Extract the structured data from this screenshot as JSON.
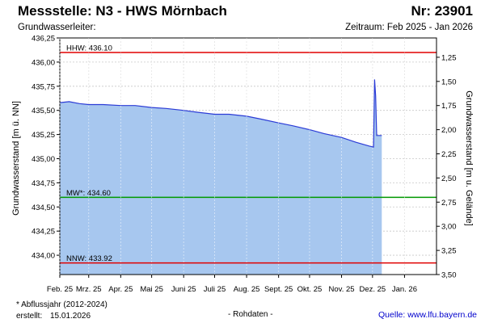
{
  "header": {
    "title": "Messstelle: N3 - HWS Mörnbach",
    "number": "Nr: 23901",
    "aquifer_label": "Grundwasserleiter:",
    "period": "Zeitraum: Feb 2025 - Jan 2026"
  },
  "footer": {
    "footnote": "* Abflussjahr (2012-2024)",
    "created_label": "erstellt:",
    "created_date": "15.01.2026",
    "raw_data": "- Rohdaten -",
    "source": "Quelle: www.lfu.bayern.de"
  },
  "colors": {
    "fill": "#a7c7ef",
    "line": "#2b3bd6",
    "hhw": "#e00000",
    "mw": "#009900",
    "nnw": "#e00000",
    "grid": "#c8c8c8",
    "background": "#ffffff"
  },
  "chart_data": {
    "type": "area",
    "ylabel_left": "Grundwasserstand [m ü. NN]",
    "ylabel_right": "Grundwasserstand [m u. Gelände]",
    "ylim_left": [
      433.8,
      436.25
    ],
    "ylim_right": [
      1.05,
      3.5
    ],
    "yticks_left": [
      "436,25",
      "436,00",
      "435,75",
      "435,50",
      "435,25",
      "435,00",
      "434,75",
      "434,50",
      "434,25",
      "434,00"
    ],
    "yticks_right": [
      "1,25",
      "1,50",
      "1,75",
      "2,00",
      "2,25",
      "2,50",
      "2,75",
      "3,00",
      "3,25",
      "3,50"
    ],
    "x_labels": [
      "Feb. 25",
      "Mrz. 25",
      "Apr. 25",
      "Mai 25",
      "Juni 25",
      "Juli 25",
      "Aug. 25",
      "Sept. 25",
      "Okt. 25",
      "Nov. 25",
      "Dez. 25",
      "Jan. 26"
    ],
    "reference_lines": [
      {
        "label": "HHW: 436.10",
        "value": 436.1
      },
      {
        "label": "MW*: 434.60",
        "value": 434.6
      },
      {
        "label": "NNW: 433.92",
        "value": 433.92
      }
    ],
    "series": [
      {
        "values": [
          [
            "2025-02-01",
            435.58
          ],
          [
            "2025-02-10",
            435.59
          ],
          [
            "2025-02-20",
            435.57
          ],
          [
            "2025-03-01",
            435.56
          ],
          [
            "2025-03-15",
            435.56
          ],
          [
            "2025-04-01",
            435.55
          ],
          [
            "2025-04-15",
            435.55
          ],
          [
            "2025-05-01",
            435.53
          ],
          [
            "2025-05-15",
            435.52
          ],
          [
            "2025-06-01",
            435.5
          ],
          [
            "2025-06-15",
            435.48
          ],
          [
            "2025-07-01",
            435.46
          ],
          [
            "2025-07-15",
            435.46
          ],
          [
            "2025-08-01",
            435.44
          ],
          [
            "2025-08-15",
            435.41
          ],
          [
            "2025-09-01",
            435.37
          ],
          [
            "2025-09-15",
            435.34
          ],
          [
            "2025-10-01",
            435.3
          ],
          [
            "2025-10-15",
            435.26
          ],
          [
            "2025-11-01",
            435.22
          ],
          [
            "2025-11-15",
            435.17
          ],
          [
            "2025-11-28",
            435.13
          ],
          [
            "2025-12-02",
            435.12
          ],
          [
            "2025-12-03",
            435.82
          ],
          [
            "2025-12-04",
            435.65
          ],
          [
            "2025-12-05",
            435.24
          ],
          [
            "2025-12-10",
            435.24
          ]
        ]
      }
    ]
  }
}
